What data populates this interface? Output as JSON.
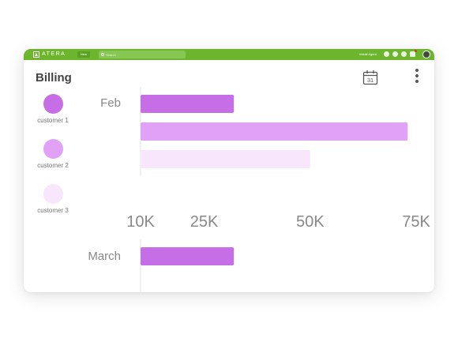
{
  "topbar": {
    "logo_text": "ATERA",
    "new_label": "New",
    "search_placeholder": "Search",
    "install_label": "Install Agent",
    "bg_color": "#6cb52d"
  },
  "header": {
    "title": "Billing",
    "calendar_day": "31"
  },
  "legend": {
    "items": [
      {
        "label": "customer 1",
        "color": "#c66ee6"
      },
      {
        "label": "customer 2",
        "color": "#e0a1f7"
      },
      {
        "label": "customer 3",
        "color": "#f7e6fc"
      }
    ]
  },
  "chart_data": {
    "type": "bar",
    "orientation": "horizontal",
    "categories": [
      "Feb",
      "March"
    ],
    "series": [
      {
        "name": "customer 1",
        "color": "#c66ee6",
        "values": [
          32000,
          32000
        ]
      },
      {
        "name": "customer 2",
        "color": "#e0a1f7",
        "values": [
          73000,
          null
        ]
      },
      {
        "name": "customer 3",
        "color": "#f7e6fc",
        "values": [
          50000,
          null
        ]
      }
    ],
    "x_ticks": [
      {
        "label": "10K",
        "value": 10000
      },
      {
        "label": "25K",
        "value": 25000
      },
      {
        "label": "50K",
        "value": 50000
      },
      {
        "label": "75K",
        "value": 75000
      }
    ],
    "xlim": [
      10000,
      75000
    ],
    "grid": false,
    "legend_position": "left"
  }
}
